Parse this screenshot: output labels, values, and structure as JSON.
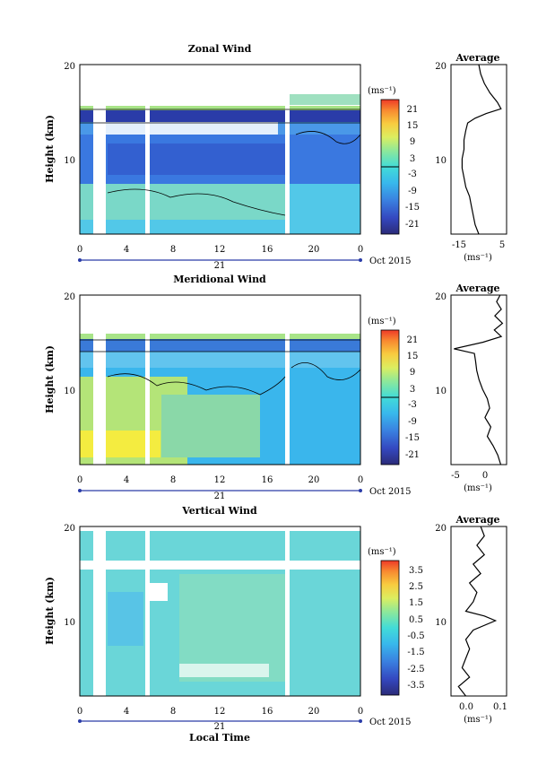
{
  "chart_data": [
    {
      "type": "heatmap",
      "title": "Zonal Wind",
      "ylabel": "Height (km)",
      "yticks": [
        "10",
        "20"
      ],
      "xticks": [
        "0",
        "4",
        "8",
        "12",
        "16",
        "20",
        "0"
      ],
      "date_tick": "21",
      "date_label": "Oct 2015",
      "colorbar_unit": "(ms⁻¹)",
      "colorbar_ticks": [
        "21",
        "15",
        "9",
        "3",
        "-3",
        "-9",
        "-15",
        "-21"
      ],
      "ylim": [
        2,
        20
      ],
      "xlim": [
        0,
        24
      ],
      "profile": {
        "title": "Average",
        "yticks": [
          "10",
          "20"
        ],
        "xticks": [
          "-15",
          "5"
        ],
        "xlabel": "(ms⁻¹)",
        "xlim": [
          -21,
          9
        ],
        "height": [
          2,
          3,
          4,
          5,
          6,
          7,
          8,
          9,
          10,
          11,
          12,
          13,
          13.8,
          14.3,
          14.8,
          15.3,
          16,
          17,
          18,
          19,
          20
        ],
        "value": [
          -6,
          -8,
          -9,
          -10,
          -11,
          -13,
          -14,
          -15,
          -15,
          -14,
          -14,
          -13,
          -12,
          -8,
          -2,
          6,
          4,
          0,
          -3,
          -5,
          -6
        ]
      }
    },
    {
      "type": "heatmap",
      "title": "Meridional Wind",
      "ylabel": "Height (km)",
      "yticks": [
        "10",
        "20"
      ],
      "xticks": [
        "0",
        "4",
        "8",
        "12",
        "16",
        "20",
        "0"
      ],
      "date_tick": "21",
      "date_label": "Oct 2015",
      "colorbar_unit": "(ms⁻¹)",
      "colorbar_ticks": [
        "21",
        "15",
        "9",
        "3",
        "-3",
        "-9",
        "-15",
        "-21"
      ],
      "ylim": [
        2,
        20
      ],
      "xlim": [
        0,
        24
      ],
      "profile": {
        "title": "Average",
        "yticks": [
          "10",
          "20"
        ],
        "xticks": [
          "-5",
          "0"
        ],
        "xlabel": "(ms⁻¹)",
        "xlim": [
          -7,
          2.5
        ],
        "height": [
          2,
          3,
          4,
          5,
          6,
          7,
          8,
          9,
          10,
          11,
          12,
          13,
          13.8,
          14.3,
          15,
          15.6,
          16.3,
          17,
          17.8,
          18.5,
          19.3,
          20
        ],
        "value": [
          1.5,
          1.0,
          0.2,
          -0.8,
          -0.2,
          -1.2,
          -0.4,
          -0.8,
          -1.6,
          -2.2,
          -2.6,
          -2.8,
          -3.0,
          -6.5,
          -1.5,
          1.6,
          0.4,
          1.8,
          0.5,
          1.6,
          0.8,
          1.4
        ]
      }
    },
    {
      "type": "heatmap",
      "title": "Vertical Wind",
      "ylabel": "Height (km)",
      "yticks": [
        "10",
        "20"
      ],
      "xticks": [
        "0",
        "4",
        "8",
        "12",
        "16",
        "20",
        "0"
      ],
      "date_tick": "21",
      "date_label": "Oct 2015",
      "xlabel": "Local Time",
      "colorbar_unit": "(ms⁻¹)",
      "colorbar_ticks": [
        "3.5",
        "2.5",
        "1.5",
        "0.5",
        "-0.5",
        "-1.5",
        "-2.5",
        "-3.5"
      ],
      "ylim": [
        2,
        20
      ],
      "xlim": [
        0,
        24
      ],
      "profile": {
        "title": "Average",
        "yticks": [
          "10",
          "20"
        ],
        "xticks": [
          "0.0",
          "0.1"
        ],
        "xlabel": "(ms⁻¹)",
        "xlim": [
          -0.04,
          0.11
        ],
        "height": [
          2,
          3,
          4,
          5,
          6,
          7,
          8,
          9,
          10,
          10.5,
          11,
          12,
          13,
          14,
          15,
          16,
          17,
          18,
          19,
          20
        ],
        "value": [
          0.0,
          -0.02,
          0.01,
          -0.01,
          0.0,
          0.01,
          0.0,
          0.02,
          0.08,
          0.05,
          0.0,
          0.02,
          0.03,
          0.01,
          0.04,
          0.02,
          0.05,
          0.03,
          0.05,
          0.04
        ]
      }
    }
  ]
}
